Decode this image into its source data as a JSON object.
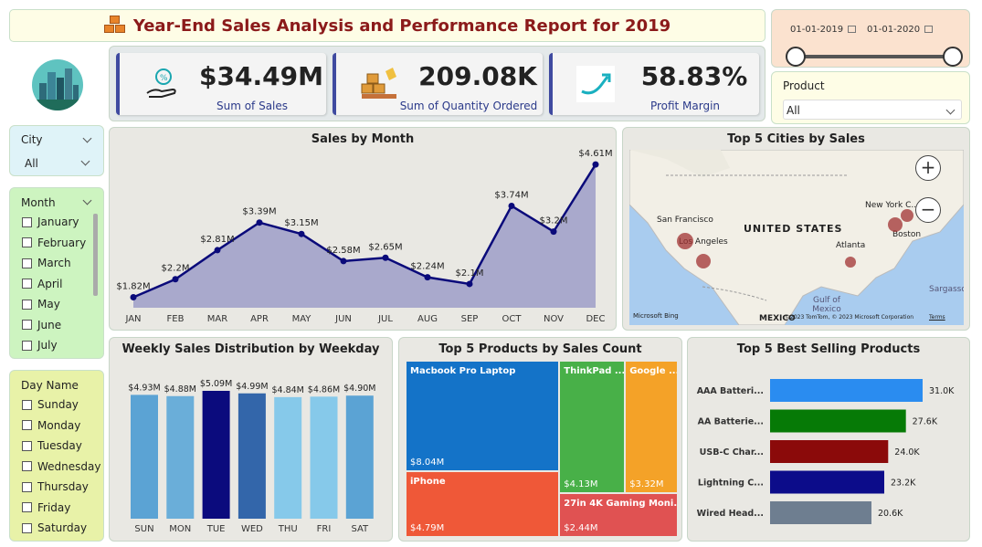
{
  "header": {
    "title": "Year-End Sales Analysis and Performance Report for 2019"
  },
  "date_slicer": {
    "start": "01-01-2019",
    "end": "01-01-2020"
  },
  "product_slicer": {
    "label": "Product",
    "value": "All"
  },
  "kpis": [
    {
      "value": "$34.49M",
      "label": "Sum of Sales",
      "icon": "hand-coin-icon"
    },
    {
      "value": "209.08K",
      "label": "Sum of Quantity Ordered",
      "icon": "boxes-icon"
    },
    {
      "value": "58.83%",
      "label": "Profit Margin",
      "icon": "growth-arrow-icon"
    }
  ],
  "city_slicer": {
    "label": "City",
    "value": "All"
  },
  "month_slicer": {
    "label": "Month",
    "items": [
      "January",
      "February",
      "March",
      "April",
      "May",
      "June",
      "July"
    ]
  },
  "day_slicer": {
    "label": "Day Name",
    "items": [
      "Sunday",
      "Monday",
      "Tuesday",
      "Wednesday",
      "Thursday",
      "Friday",
      "Saturday"
    ]
  },
  "colors": {
    "line": "#0a0a7a",
    "area": "#a9a9cc",
    "header_title": "#8b1a1a",
    "kpi_accent": "#3f4aa0"
  },
  "chart_data": [
    {
      "type": "area",
      "title": "Sales by Month",
      "categories": [
        "JAN",
        "FEB",
        "MAR",
        "APR",
        "MAY",
        "JUN",
        "JUL",
        "AUG",
        "SEP",
        "OCT",
        "NOV",
        "DEC"
      ],
      "values": [
        1.82,
        2.2,
        2.81,
        3.39,
        3.15,
        2.58,
        2.65,
        2.24,
        2.1,
        3.74,
        3.2,
        4.61
      ],
      "labels": [
        "$1.82M",
        "$2.2M",
        "$2.81M",
        "$3.39M",
        "$3.15M",
        "$2.58M",
        "$2.65M",
        "$2.24M",
        "$2.1M",
        "$3.74M",
        "$3.2M",
        "$4.61M"
      ],
      "ylim": [
        1.6,
        4.9
      ]
    },
    {
      "type": "map",
      "title": "Top 5 Cities by Sales",
      "cities": [
        "San Francisco",
        "Los Angeles",
        "New York C...",
        "Boston",
        "Atlanta"
      ],
      "map_labels": [
        "UNITED STATES",
        "MEXICO",
        "Gulf of Mexico",
        "Sargasso",
        "Microsoft Bing",
        "©2023 TomTom, © 2023 Microsoft Corporation",
        "Terms"
      ]
    },
    {
      "type": "bar",
      "title": "Weekly Sales Distribution by Weekday",
      "categories": [
        "SUN",
        "MON",
        "TUE",
        "WED",
        "THU",
        "FRI",
        "SAT"
      ],
      "values": [
        4.93,
        4.88,
        5.09,
        4.99,
        4.84,
        4.86,
        4.9
      ],
      "labels": [
        "$4.93M",
        "$4.88M",
        "$5.09M",
        "$4.99M",
        "$4.84M",
        "$4.86M",
        "$4.90M"
      ],
      "colors": [
        "#5ba3d4",
        "#6aaed9",
        "#0b0b7d",
        "#3366aa",
        "#86c9ea",
        "#86c9ea",
        "#5ba3d4"
      ]
    },
    {
      "type": "treemap",
      "title": "Top 5 Products by Sales Count",
      "items": [
        {
          "name": "Macbook Pro Laptop",
          "value": 8.04,
          "label": "$8.04M",
          "color": "#1473c8"
        },
        {
          "name": "iPhone",
          "value": 4.79,
          "label": "$4.79M",
          "color": "#ef5838"
        },
        {
          "name": "ThinkPad ...",
          "value": 4.13,
          "label": "$4.13M",
          "color": "#48b048"
        },
        {
          "name": "Google ...",
          "value": 3.32,
          "label": "$3.32M",
          "color": "#f4a228"
        },
        {
          "name": "27in 4K Gaming Moni...",
          "value": 2.44,
          "label": "$2.44M",
          "color": "#e05252"
        }
      ]
    },
    {
      "type": "bar",
      "orientation": "horizontal",
      "title": "Top 5 Best Selling Products",
      "categories": [
        "AAA Batteri...",
        "AA Batterie...",
        "USB-C Char...",
        "Lightning C...",
        "Wired Head..."
      ],
      "values": [
        31.0,
        27.6,
        24.0,
        23.2,
        20.6
      ],
      "labels": [
        "31.0K",
        "27.6K",
        "24.0K",
        "23.2K",
        "20.6K"
      ],
      "colors": [
        "#2a8cf0",
        "#067a06",
        "#8b0a0a",
        "#0c0c8a",
        "#6e7e90"
      ]
    }
  ]
}
